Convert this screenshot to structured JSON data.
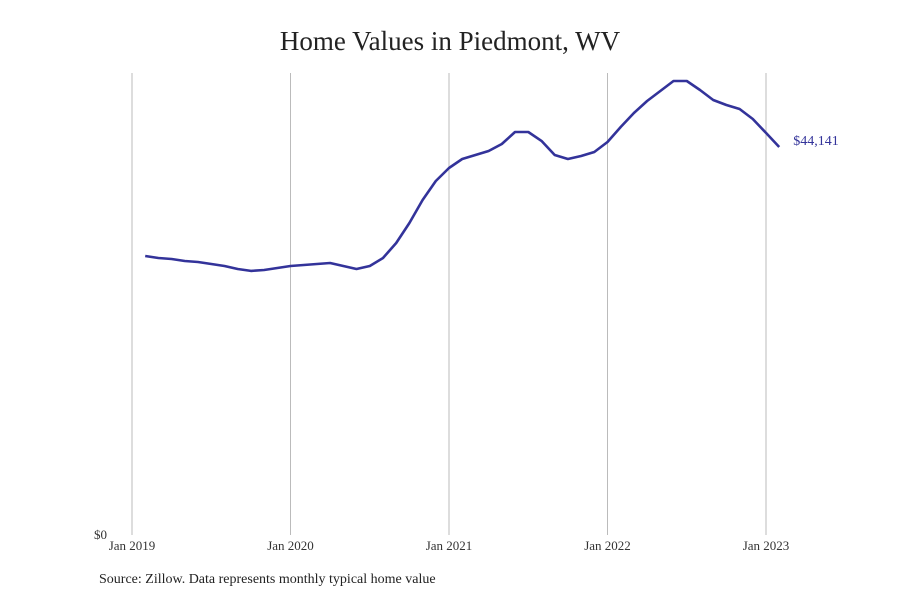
{
  "chart_data": {
    "type": "line",
    "title": "Home Values in Piedmont, WV",
    "xlabel": "",
    "ylabel": "",
    "source": "Source: Zillow. Data represents monthly typical home value",
    "x_tick_labels": [
      "Jan 2019",
      "Jan 2020",
      "Jan 2021",
      "Jan 2022",
      "Jan 2023"
    ],
    "y_tick_labels": [
      "$0"
    ],
    "ylim": [
      0,
      52560
    ],
    "grid": "vertical",
    "line_color": "#33339a",
    "end_label": "$44,141",
    "series": [
      {
        "name": "Home value",
        "x": [
          "2019-02",
          "2019-03",
          "2019-04",
          "2019-05",
          "2019-06",
          "2019-07",
          "2019-08",
          "2019-09",
          "2019-10",
          "2019-11",
          "2019-12",
          "2020-01",
          "2020-02",
          "2020-03",
          "2020-04",
          "2020-05",
          "2020-06",
          "2020-07",
          "2020-08",
          "2020-09",
          "2020-10",
          "2020-11",
          "2020-12",
          "2021-01",
          "2021-02",
          "2021-03",
          "2021-04",
          "2021-05",
          "2021-06",
          "2021-07",
          "2021-08",
          "2021-09",
          "2021-10",
          "2021-11",
          "2021-12",
          "2022-01",
          "2022-02",
          "2022-03",
          "2022-04",
          "2022-05",
          "2022-06",
          "2022-07",
          "2022-08",
          "2022-09",
          "2022-10",
          "2022-11",
          "2022-12",
          "2023-01",
          "2023-02"
        ],
        "values": [
          31740,
          31510,
          31400,
          31170,
          31060,
          30830,
          30600,
          30260,
          30040,
          30150,
          30380,
          30600,
          30720,
          30830,
          30950,
          30600,
          30260,
          30600,
          31510,
          33220,
          35500,
          38110,
          40270,
          41750,
          42780,
          43230,
          43690,
          44480,
          45850,
          45850,
          44830,
          43230,
          42780,
          43120,
          43570,
          44710,
          46420,
          48010,
          49380,
          50510,
          51650,
          51650,
          50630,
          49490,
          48920,
          48470,
          47330,
          45740,
          44141
        ]
      }
    ]
  }
}
